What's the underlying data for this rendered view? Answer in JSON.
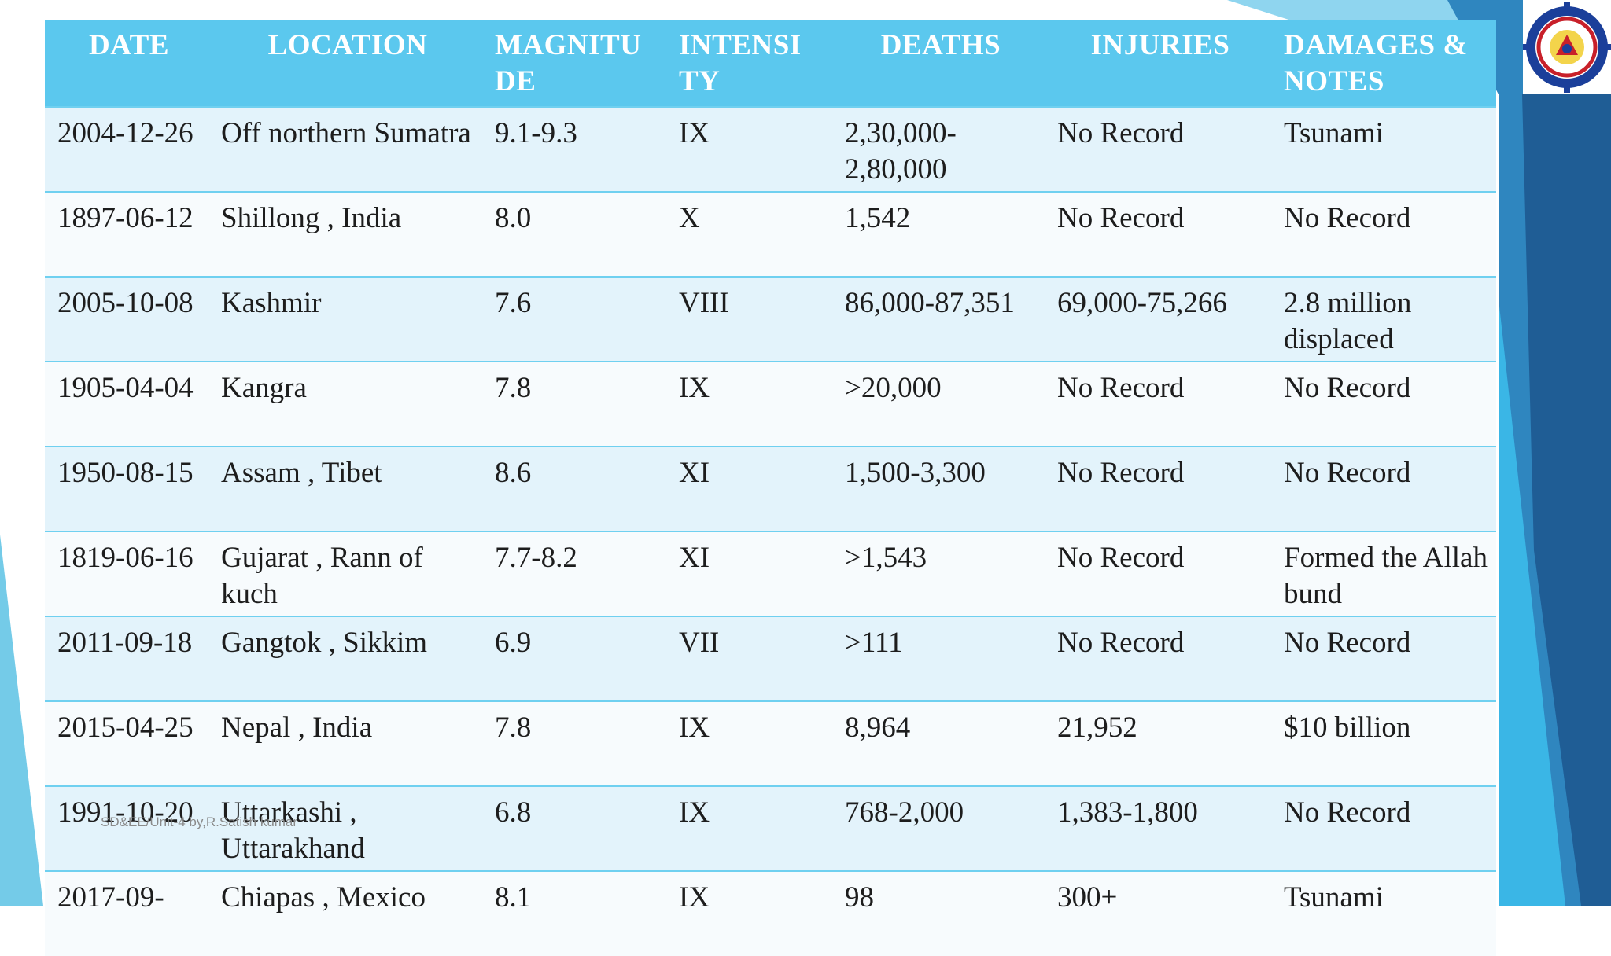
{
  "table": {
    "headers": [
      "DATE",
      "LOCATION",
      "MAGNITU DE",
      "INTENSI TY",
      "DEATHS",
      "INJURIES",
      "DAMAGES & NOTES"
    ],
    "rows": [
      [
        "2004-12-26",
        "Off northern Sumatra",
        "9.1-9.3",
        "IX",
        "2,30,000-2,80,000",
        "No Record",
        "Tsunami"
      ],
      [
        "1897-06-12",
        "Shillong , India",
        "8.0",
        "X",
        "1,542",
        "No Record",
        "No Record"
      ],
      [
        "2005-10-08",
        "Kashmir",
        "7.6",
        "VIII",
        "86,000-87,351",
        "69,000-75,266",
        "2.8 million displaced"
      ],
      [
        "1905-04-04",
        "Kangra",
        "7.8",
        "IX",
        ">20,000",
        "No Record",
        "No Record"
      ],
      [
        "1950-08-15",
        "Assam , Tibet",
        "8.6",
        "XI",
        "1,500-3,300",
        "No Record",
        "No Record"
      ],
      [
        "1819-06-16",
        "Gujarat , Rann of kuch",
        "7.7-8.2",
        "XI",
        ">1,543",
        "No Record",
        "Formed the Allah bund"
      ],
      [
        "2011-09-18",
        "Gangtok , Sikkim",
        "6.9",
        "VII",
        ">111",
        "No Record",
        "No Record"
      ],
      [
        "2015-04-25",
        "Nepal , India",
        "7.8",
        "IX",
        "8,964",
        "21,952",
        "$10 billion"
      ],
      [
        "1991-10-20",
        "Uttarkashi , Uttarakhand",
        "6.8",
        "IX",
        "768-2,000",
        "1,383-1,800",
        "No Record"
      ],
      [
        "2017-09-",
        "Chiapas , Mexico",
        "8.1",
        "IX",
        "98",
        "300+",
        "Tsunami"
      ]
    ]
  },
  "footer": "SD&EE/Unit-4  by,R.Satish kumar",
  "logo_icon": "college-seal-icon",
  "colors": {
    "header_bg": "#5bc8ee",
    "row_odd": "#e3f3fb",
    "row_even": "#f7fbfd",
    "accent_dark": "#1f5d95"
  }
}
